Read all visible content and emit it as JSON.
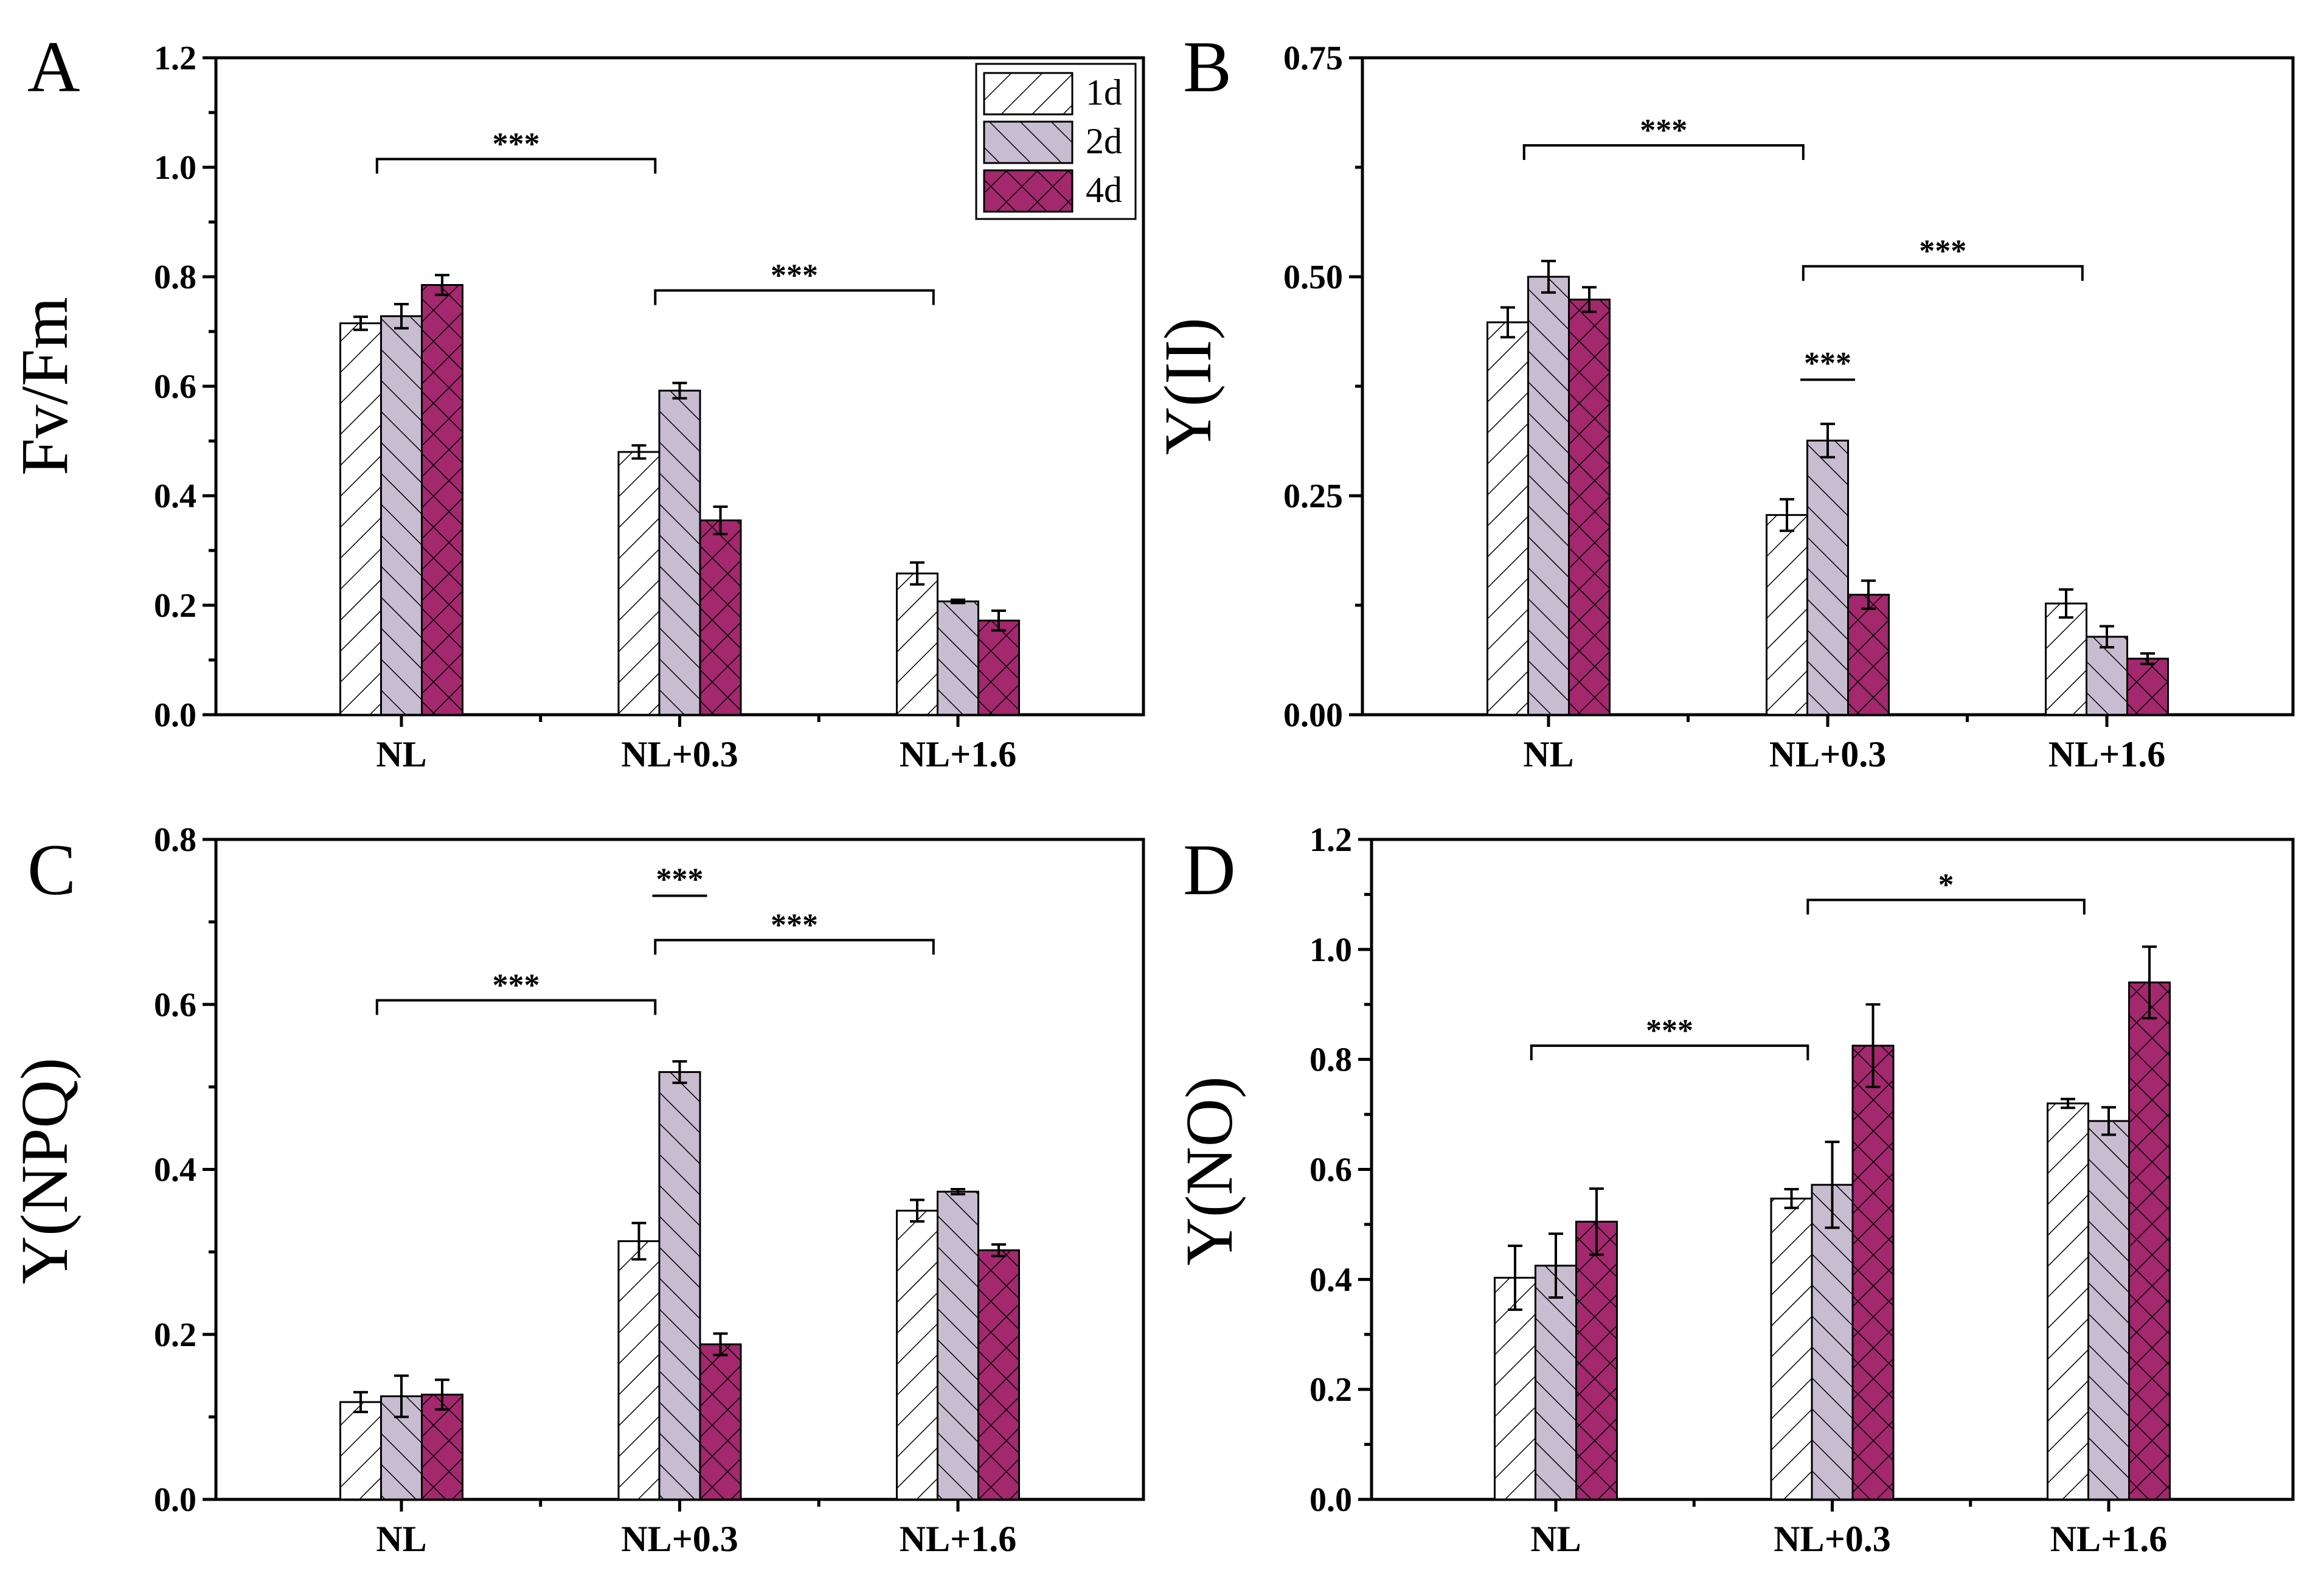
{
  "figure": {
    "background": "#ffffff"
  },
  "legend": {
    "entries": [
      {
        "label": "1d",
        "fill": "#ffffff",
        "pattern": "forward-diagonal"
      },
      {
        "label": "2d",
        "fill": "#c8bcd0",
        "pattern": "back-diagonal"
      },
      {
        "label": "4d",
        "fill": "#a3286e",
        "pattern": "crosshatch"
      }
    ]
  },
  "chart_data": [
    {
      "panel": "A",
      "type": "bar",
      "ylabel": "Fv/Fm",
      "categories": [
        "NL",
        "NL+0.3",
        "NL+1.6"
      ],
      "ylim": [
        0,
        1.2
      ],
      "yticks": [
        0.0,
        0.2,
        0.4,
        0.6,
        0.8,
        1.0,
        1.2
      ],
      "tick_decimals": 1,
      "series": [
        {
          "name": "1d",
          "values": [
            0.715,
            0.48,
            0.258
          ],
          "errors": [
            0.012,
            0.012,
            0.02
          ]
        },
        {
          "name": "2d",
          "values": [
            0.728,
            0.592,
            0.207
          ],
          "errors": [
            0.022,
            0.014,
            0.003
          ]
        },
        {
          "name": "4d",
          "values": [
            0.785,
            0.355,
            0.172
          ],
          "errors": [
            0.018,
            0.025,
            0.018
          ]
        }
      ],
      "annotations": [
        {
          "from": 0,
          "to": 1,
          "text": "***",
          "y": 1.015
        },
        {
          "from": 1,
          "to": 2,
          "text": "***",
          "y": 0.775
        }
      ],
      "legend": true
    },
    {
      "panel": "B",
      "type": "bar",
      "ylabel": "Y(II)",
      "categories": [
        "NL",
        "NL+0.3",
        "NL+1.6"
      ],
      "ylim": [
        0,
        0.75
      ],
      "yticks": [
        0.0,
        0.25,
        0.5,
        0.75
      ],
      "tick_decimals": 2,
      "series": [
        {
          "name": "1d",
          "values": [
            0.448,
            0.228,
            0.127
          ],
          "errors": [
            0.017,
            0.018,
            0.016
          ]
        },
        {
          "name": "2d",
          "values": [
            0.5,
            0.313,
            0.089
          ],
          "errors": [
            0.018,
            0.019,
            0.012
          ]
        },
        {
          "name": "4d",
          "values": [
            0.474,
            0.137,
            0.064
          ],
          "errors": [
            0.014,
            0.016,
            0.006
          ]
        }
      ],
      "annotations": [
        {
          "from": 0,
          "to": 1,
          "text": "***",
          "y": 0.65
        },
        {
          "from": 1,
          "to": 2,
          "text": "***",
          "y": 0.512
        },
        {
          "within": 1,
          "text": "***",
          "y": 0.395
        }
      ],
      "legend": false
    },
    {
      "panel": "C",
      "type": "bar",
      "ylabel": "Y(NPQ)",
      "categories": [
        "NL",
        "NL+0.3",
        "NL+1.6"
      ],
      "ylim": [
        0,
        0.8
      ],
      "yticks": [
        0.0,
        0.2,
        0.4,
        0.6,
        0.8
      ],
      "tick_decimals": 1,
      "series": [
        {
          "name": "1d",
          "values": [
            0.118,
            0.313,
            0.35
          ],
          "errors": [
            0.012,
            0.022,
            0.013
          ]
        },
        {
          "name": "2d",
          "values": [
            0.125,
            0.518,
            0.373
          ],
          "errors": [
            0.025,
            0.013,
            0.003
          ]
        },
        {
          "name": "4d",
          "values": [
            0.127,
            0.188,
            0.302
          ],
          "errors": [
            0.018,
            0.013,
            0.007
          ]
        }
      ],
      "annotations": [
        {
          "from": 0,
          "to": 1,
          "text": "***",
          "y": 0.605
        },
        {
          "from": 1,
          "to": 2,
          "text": "***",
          "y": 0.678
        },
        {
          "within": 1,
          "text": "***",
          "y": 0.745
        }
      ],
      "legend": false
    },
    {
      "panel": "D",
      "type": "bar",
      "ylabel": "Y(NO)",
      "categories": [
        "NL",
        "NL+0.3",
        "NL+1.6"
      ],
      "ylim": [
        0,
        1.2
      ],
      "yticks": [
        0.0,
        0.2,
        0.4,
        0.6,
        0.8,
        1.0,
        1.2
      ],
      "tick_decimals": 1,
      "series": [
        {
          "name": "1d",
          "values": [
            0.403,
            0.547,
            0.72
          ],
          "errors": [
            0.058,
            0.017,
            0.008
          ]
        },
        {
          "name": "2d",
          "values": [
            0.425,
            0.572,
            0.688
          ],
          "errors": [
            0.058,
            0.078,
            0.025
          ]
        },
        {
          "name": "4d",
          "values": [
            0.505,
            0.825,
            0.94
          ],
          "errors": [
            0.06,
            0.075,
            0.065
          ]
        }
      ],
      "annotations": [
        {
          "from": 0,
          "to": 1,
          "text": "***",
          "y": 0.825
        },
        {
          "from": 1,
          "to": 2,
          "text": "*",
          "y": 1.09
        }
      ],
      "legend": false
    }
  ]
}
